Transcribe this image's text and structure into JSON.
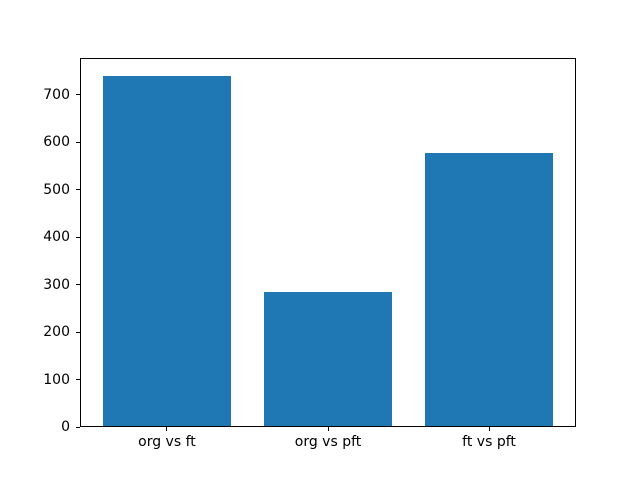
{
  "figure": {
    "background": "#ffffff",
    "title": ""
  },
  "chart_data": {
    "type": "bar",
    "categories": [
      "org vs ft",
      "org vs pft",
      "ft vs pft"
    ],
    "values": [
      740,
      284,
      578
    ],
    "title": "",
    "xlabel": "",
    "ylabel": "",
    "ylim": [
      0,
      777
    ],
    "yticks": [
      0,
      100,
      200,
      300,
      400,
      500,
      600,
      700
    ],
    "bar_color": "#1f77b4",
    "axis_color": "#000000",
    "text_color": "#000000",
    "grid": false,
    "legend_position": "none",
    "bar_width_fraction": 0.8
  }
}
